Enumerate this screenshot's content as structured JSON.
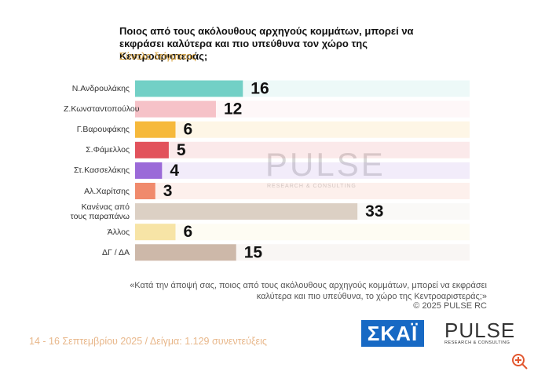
{
  "chart_data": {
    "type": "bar",
    "title": "Ποιος από τους ακόλουθους αρχηγούς κομμάτων, μπορεί να εκφράσει καλύτερα και πιο υπεύθυνα τον χώρο της Κεντροαριστεράς;",
    "subtitle": "Σύνολο δείγματος",
    "categories": [
      "Ν.Ανδρουλάκης",
      "Ζ.Κωνσταντοπούλου",
      "Γ.Βαρουφάκης",
      "Σ.Φάμελλος",
      "Στ.Κασσελάκης",
      "Αλ.Χαρίτσης",
      "Κανένας από τους παραπάνω",
      "Άλλος",
      "ΔΓ / ΔΑ"
    ],
    "values": [
      16,
      12,
      6,
      5,
      4,
      3,
      33,
      6,
      15
    ],
    "colors": [
      "#72d0c6",
      "#f6c2c8",
      "#f6b93b",
      "#e2525c",
      "#9b6ad8",
      "#f08a6c",
      "#dcd0c4",
      "#f7e4a6",
      "#cdb8a9"
    ]
  },
  "note": "«Κατά την άποψή σας, ποιος από τους ακόλουθους αρχηγούς κομμάτων, μπορεί να εκφράσει καλύτερα και πιο υπεύθυνα, το χώρο της Κεντροαριστεράς;»",
  "copyright": "©  2025  PULSE RC",
  "footer": "14 - 16 Σεπτεμβρίου 2025  /  Δείγμα:  1.129 συνεντεύξεις",
  "logos": {
    "skai": "ΣΚΑΪ",
    "pulse": "PULSE",
    "pulse_sub": "RESEARCH & CONSULTING"
  }
}
